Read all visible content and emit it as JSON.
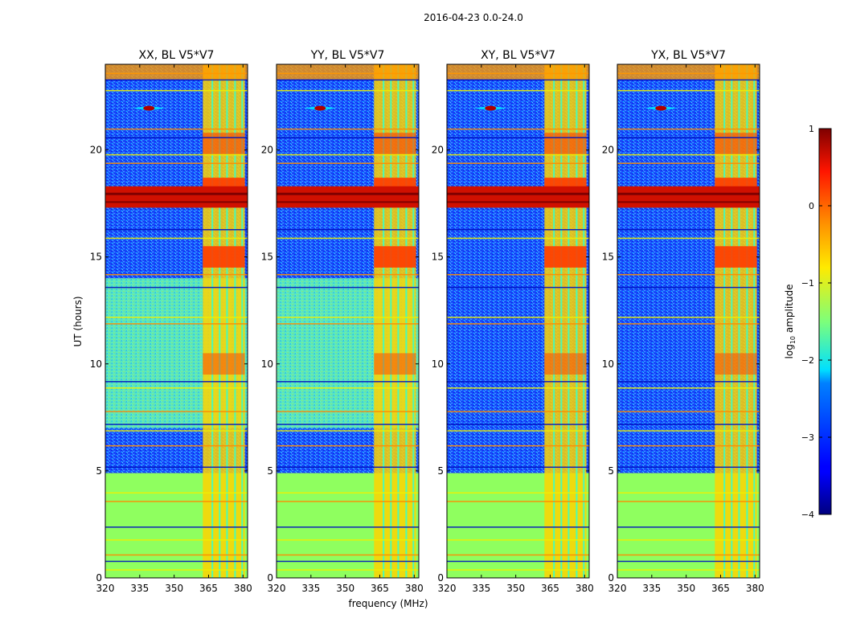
{
  "figure": {
    "suptitle": "2016-04-23 0.0-24.0"
  },
  "chart_data": [
    {
      "type": "heatmap",
      "title": "XX, BL V5*V7",
      "xlabel": "frequency (MHz)",
      "ylabel": "UT (hours)",
      "xlim": [
        320,
        382
      ],
      "ylim": [
        0,
        24
      ],
      "xticks": [
        "320",
        "335",
        "350",
        "365",
        "380"
      ],
      "xtick_values": [
        320,
        335,
        350,
        365,
        380
      ],
      "yticks": [
        "0",
        "5",
        "10",
        "15",
        "20"
      ],
      "ytick_values": [
        0,
        5,
        10,
        15,
        20
      ]
    },
    {
      "type": "heatmap",
      "title": "YY, BL V5*V7",
      "xlabel": "frequency (MHz)",
      "ylabel": "",
      "xlim": [
        320,
        382
      ],
      "ylim": [
        0,
        24
      ],
      "xticks": [
        "320",
        "335",
        "350",
        "365",
        "380"
      ],
      "xtick_values": [
        320,
        335,
        350,
        365,
        380
      ],
      "yticks": [
        "0",
        "5",
        "10",
        "15",
        "20"
      ],
      "ytick_values": [
        0,
        5,
        10,
        15,
        20
      ]
    },
    {
      "type": "heatmap",
      "title": "XY, BL V5*V7",
      "xlabel": "frequency (MHz)",
      "ylabel": "",
      "xlim": [
        320,
        382
      ],
      "ylim": [
        0,
        24
      ],
      "xticks": [
        "320",
        "335",
        "350",
        "365",
        "380"
      ],
      "xtick_values": [
        320,
        335,
        350,
        365,
        380
      ],
      "yticks": [
        "0",
        "5",
        "10",
        "15",
        "20"
      ],
      "ytick_values": [
        0,
        5,
        10,
        15,
        20
      ]
    },
    {
      "type": "heatmap",
      "title": "YX, BL V5*V7",
      "xlabel": "frequency (MHz)",
      "ylabel": "",
      "xlim": [
        320,
        382
      ],
      "ylim": [
        0,
        24
      ],
      "xticks": [
        "320",
        "335",
        "350",
        "365",
        "380"
      ],
      "xtick_values": [
        320,
        335,
        350,
        365,
        380
      ],
      "yticks": [
        "0",
        "5",
        "10",
        "15",
        "20"
      ],
      "ytick_values": [
        0,
        5,
        10,
        15,
        20
      ]
    }
  ],
  "shared_xlabel": "frequency (MHz)",
  "shared_ylabel": "UT (hours)",
  "colorbar": {
    "label_prefix": "log",
    "label_sub": "10",
    "label_suffix": " amplitude",
    "range": [
      -4,
      1
    ],
    "ticks": [
      "1",
      "0",
      "−1",
      "−2",
      "−3",
      "−4"
    ],
    "tick_values": [
      1,
      0,
      -1,
      -2,
      -3,
      -4
    ],
    "colormap": "jet"
  },
  "colors": {
    "low": "#00008f",
    "mid": "#7fff7f",
    "high": "#7f0000",
    "background_green": "#8fff5f",
    "rfi_yellow": "#ffe000"
  }
}
